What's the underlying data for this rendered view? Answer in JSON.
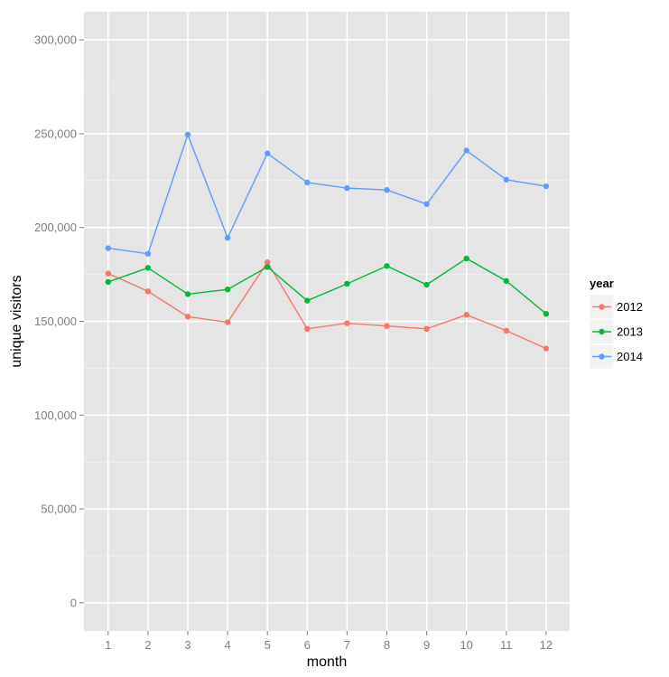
{
  "chart_data": {
    "type": "line",
    "xlabel": "month",
    "ylabel": "unique visitors",
    "x": [
      1,
      2,
      3,
      4,
      5,
      6,
      7,
      8,
      9,
      10,
      11,
      12
    ],
    "x_tick_labels": [
      "1",
      "2",
      "3",
      "4",
      "5",
      "6",
      "7",
      "8",
      "9",
      "10",
      "11",
      "12"
    ],
    "ylim": [
      -15000,
      315000
    ],
    "y_ticks": [
      0,
      50000,
      100000,
      150000,
      200000,
      250000,
      300000
    ],
    "y_tick_labels": [
      "0",
      "50,000",
      "100,000",
      "150,000",
      "200,000",
      "250,000",
      "300,000"
    ],
    "grid": true,
    "legend": {
      "title": "year",
      "position": "right"
    },
    "series": [
      {
        "name": "2012",
        "color": "#F8766D",
        "values": [
          175500,
          166000,
          152500,
          149500,
          181500,
          146000,
          149000,
          147500,
          146000,
          153500,
          145000,
          135500
        ]
      },
      {
        "name": "2013",
        "color": "#00BA38",
        "values": [
          171000,
          178500,
          164500,
          167000,
          179000,
          161000,
          170000,
          179500,
          169500,
          183500,
          171500,
          154000
        ]
      },
      {
        "name": "2014",
        "color": "#619CFF",
        "values": [
          189000,
          186000,
          249500,
          194500,
          239500,
          224000,
          221000,
          220000,
          212500,
          241000,
          225500,
          222000
        ]
      }
    ]
  }
}
